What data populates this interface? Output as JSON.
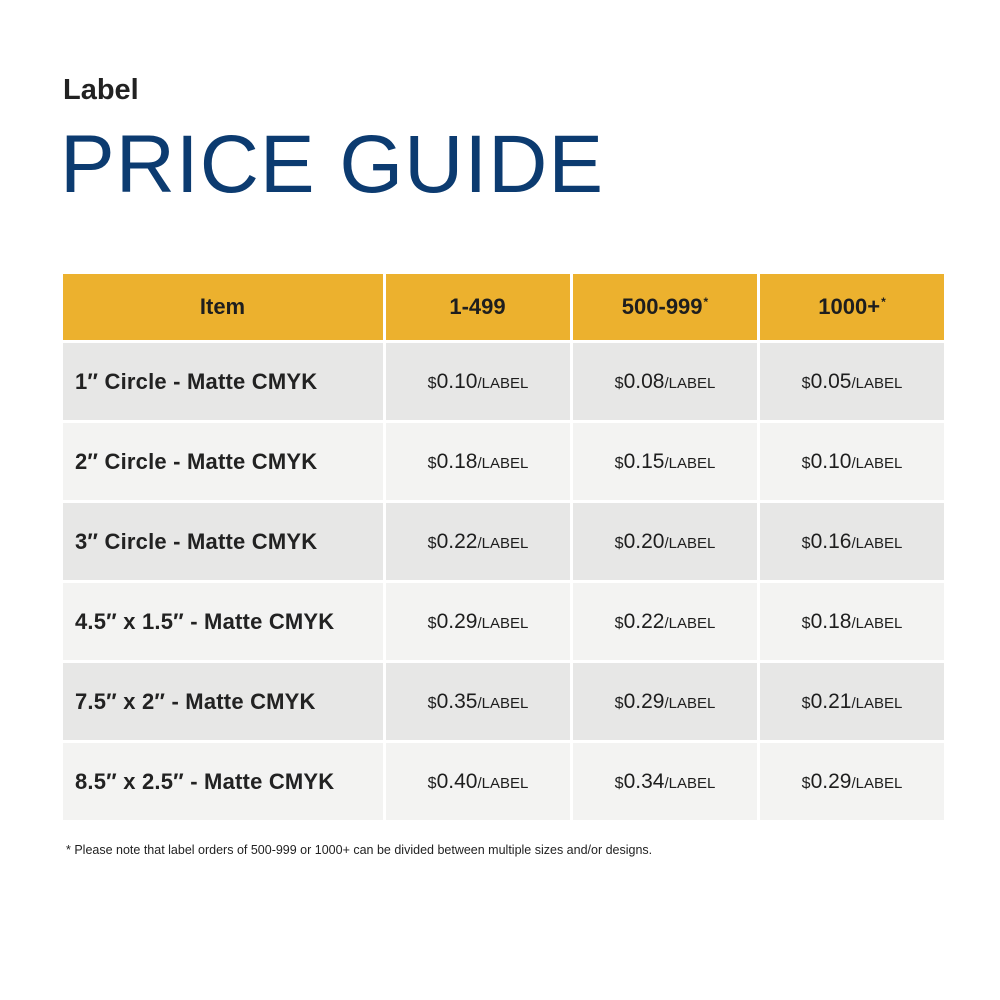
{
  "header": {
    "eyebrow": "Label",
    "title": "PRICE GUIDE"
  },
  "table": {
    "columns": [
      {
        "label": "Item",
        "mark": ""
      },
      {
        "label": "1-499",
        "mark": ""
      },
      {
        "label": "500-999",
        "mark": "*"
      },
      {
        "label": "1000+",
        "mark": "*"
      }
    ],
    "currency_symbol": "$",
    "unit_text": "/LABEL",
    "rows": [
      {
        "item": "1″ Circle - Matte CMYK",
        "prices": [
          "0.10",
          "0.08",
          "0.05"
        ]
      },
      {
        "item": "2″ Circle - Matte CMYK",
        "prices": [
          "0.18",
          "0.15",
          "0.10"
        ]
      },
      {
        "item": "3″ Circle - Matte CMYK",
        "prices": [
          "0.22",
          "0.20",
          "0.16"
        ]
      },
      {
        "item": "4.5″ x 1.5″ - Matte CMYK",
        "prices": [
          "0.29",
          "0.22",
          "0.18"
        ]
      },
      {
        "item": "7.5″ x 2″ - Matte CMYK",
        "prices": [
          "0.35",
          "0.29",
          "0.21"
        ]
      },
      {
        "item": "8.5″ x 2.5″ - Matte CMYK",
        "prices": [
          "0.40",
          "0.34",
          "0.29"
        ]
      }
    ]
  },
  "footnote": "* Please note that label orders of 500-999 or 1000+ can be divided between multiple sizes and/or designs.",
  "colors": {
    "title": "#0c3b70",
    "header_band": "#ecb12e",
    "row_dark": "#e7e7e6",
    "row_light": "#f3f3f2"
  }
}
